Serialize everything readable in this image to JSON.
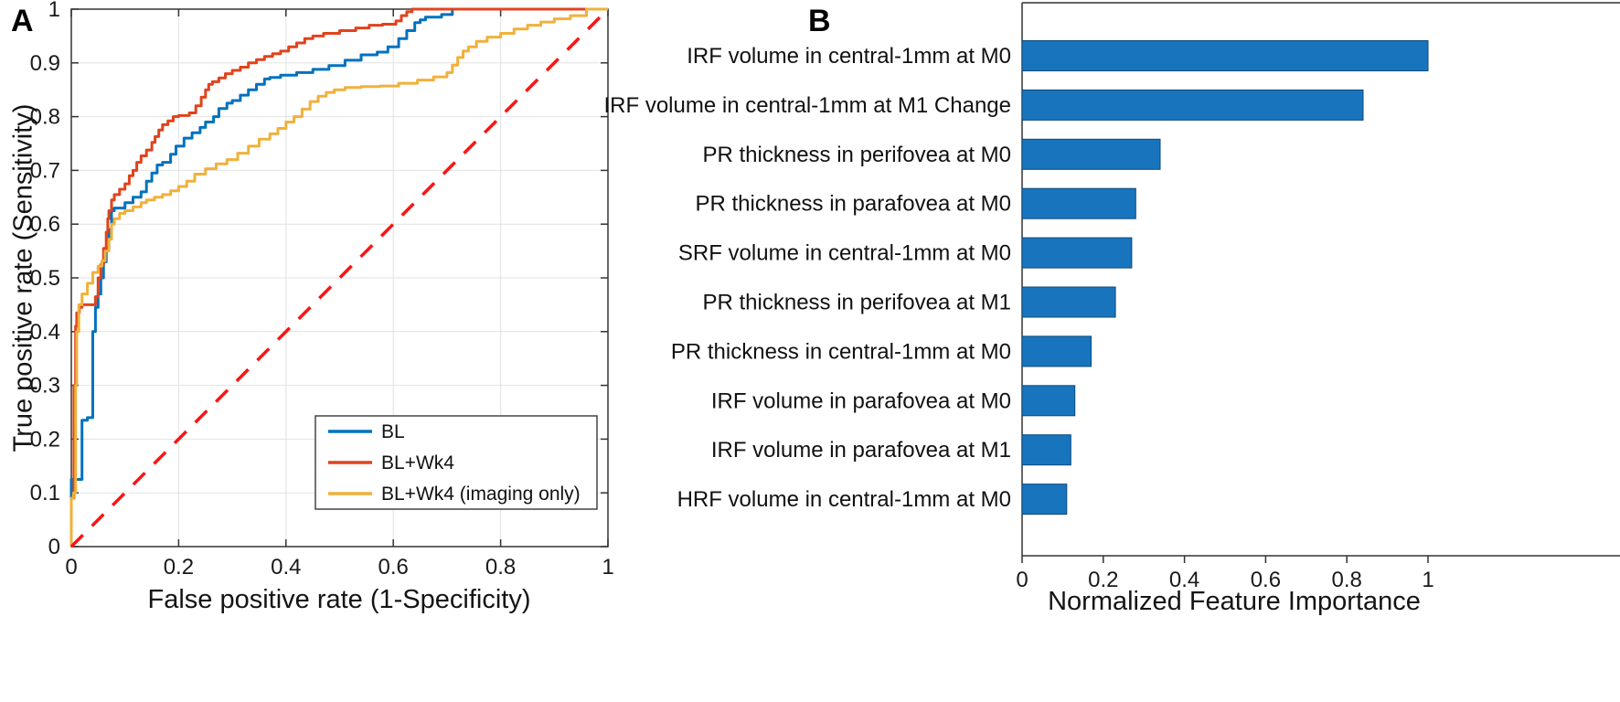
{
  "figure": {
    "background": "#ffffff",
    "panels": [
      {
        "label": "A"
      },
      {
        "label": "B"
      }
    ]
  },
  "chart_data": [
    {
      "type": "line",
      "panel": "A",
      "title": "",
      "xlabel": "False positive rate (1-Specificity)",
      "ylabel": "True positive rate (Sensitivity)",
      "xlim": [
        0,
        1
      ],
      "ylim": [
        0,
        1
      ],
      "x_ticks": [
        0,
        0.2,
        0.4,
        0.6,
        0.8,
        1
      ],
      "x_tick_labels": [
        "0",
        "0.2",
        "0.4",
        "0.6",
        "0.8",
        "1"
      ],
      "y_ticks": [
        0,
        0.1,
        0.2,
        0.3,
        0.4,
        0.5,
        0.6,
        0.7,
        0.8,
        0.9,
        1
      ],
      "y_tick_labels": [
        "0",
        "0.1",
        "0.2",
        "0.3",
        "0.4",
        "0.5",
        "0.6",
        "0.7",
        "0.8",
        "0.9",
        "1"
      ],
      "grid": true,
      "grid_color": "#e2e2e2",
      "axis_color": "#333333",
      "legend": {
        "position": "lower-right",
        "entries": [
          "BL",
          "BL+Wk4",
          "BL+Wk4 (imaging only)"
        ]
      },
      "series": [
        {
          "name": "BL",
          "color": "#0072bd",
          "width": 3,
          "step": true,
          "in_legend": true,
          "points": [
            [
              0,
              0
            ],
            [
              0.02,
              0.125
            ],
            [
              0.03,
              0.235
            ],
            [
              0.04,
              0.24
            ],
            [
              0.04,
              0.33
            ],
            [
              0.045,
              0.4
            ],
            [
              0.05,
              0.445
            ],
            [
              0.055,
              0.47
            ],
            [
              0.06,
              0.5
            ],
            [
              0.065,
              0.53
            ],
            [
              0.07,
              0.555
            ],
            [
              0.075,
              0.59
            ],
            [
              0.08,
              0.625
            ],
            [
              0.1,
              0.63
            ],
            [
              0.115,
              0.64
            ],
            [
              0.13,
              0.65
            ],
            [
              0.14,
              0.66
            ],
            [
              0.15,
              0.68
            ],
            [
              0.16,
              0.695
            ],
            [
              0.17,
              0.71
            ],
            [
              0.185,
              0.715
            ],
            [
              0.195,
              0.73
            ],
            [
              0.21,
              0.745
            ],
            [
              0.225,
              0.76
            ],
            [
              0.24,
              0.77
            ],
            [
              0.25,
              0.78
            ],
            [
              0.265,
              0.79
            ],
            [
              0.275,
              0.8
            ],
            [
              0.29,
              0.815
            ],
            [
              0.3,
              0.825
            ],
            [
              0.315,
              0.83
            ],
            [
              0.33,
              0.84
            ],
            [
              0.345,
              0.85
            ],
            [
              0.36,
              0.86
            ],
            [
              0.37,
              0.87
            ],
            [
              0.39,
              0.873
            ],
            [
              0.42,
              0.877
            ],
            [
              0.45,
              0.882
            ],
            [
              0.48,
              0.888
            ],
            [
              0.51,
              0.895
            ],
            [
              0.54,
              0.905
            ],
            [
              0.57,
              0.915
            ],
            [
              0.59,
              0.92
            ],
            [
              0.61,
              0.93
            ],
            [
              0.625,
              0.945
            ],
            [
              0.64,
              0.96
            ],
            [
              0.65,
              0.975
            ],
            [
              0.66,
              0.98
            ],
            [
              0.69,
              0.985
            ],
            [
              0.71,
              0.99
            ],
            [
              0.72,
              1
            ],
            [
              1,
              1
            ]
          ]
        },
        {
          "name": "BL+Wk4",
          "color": "#e0431c",
          "width": 3,
          "step": true,
          "in_legend": true,
          "points": [
            [
              0,
              0
            ],
            [
              0.005,
              0.09
            ],
            [
              0.008,
              0.3
            ],
            [
              0.01,
              0.41
            ],
            [
              0.015,
              0.435
            ],
            [
              0.02,
              0.445
            ],
            [
              0.045,
              0.45
            ],
            [
              0.05,
              0.465
            ],
            [
              0.055,
              0.5
            ],
            [
              0.06,
              0.525
            ],
            [
              0.065,
              0.555
            ],
            [
              0.068,
              0.585
            ],
            [
              0.07,
              0.61
            ],
            [
              0.075,
              0.625
            ],
            [
              0.08,
              0.645
            ],
            [
              0.09,
              0.655
            ],
            [
              0.1,
              0.665
            ],
            [
              0.108,
              0.675
            ],
            [
              0.115,
              0.69
            ],
            [
              0.122,
              0.7
            ],
            [
              0.13,
              0.715
            ],
            [
              0.14,
              0.727
            ],
            [
              0.15,
              0.738
            ],
            [
              0.156,
              0.752
            ],
            [
              0.163,
              0.763
            ],
            [
              0.17,
              0.775
            ],
            [
              0.18,
              0.785
            ],
            [
              0.19,
              0.792
            ],
            [
              0.2,
              0.8
            ],
            [
              0.22,
              0.802
            ],
            [
              0.232,
              0.807
            ],
            [
              0.242,
              0.82
            ],
            [
              0.25,
              0.836
            ],
            [
              0.256,
              0.85
            ],
            [
              0.263,
              0.86
            ],
            [
              0.275,
              0.865
            ],
            [
              0.287,
              0.872
            ],
            [
              0.3,
              0.88
            ],
            [
              0.315,
              0.886
            ],
            [
              0.33,
              0.892
            ],
            [
              0.345,
              0.9
            ],
            [
              0.36,
              0.906
            ],
            [
              0.375,
              0.912
            ],
            [
              0.39,
              0.917
            ],
            [
              0.405,
              0.922
            ],
            [
              0.42,
              0.93
            ],
            [
              0.435,
              0.937
            ],
            [
              0.45,
              0.945
            ],
            [
              0.47,
              0.95
            ],
            [
              0.5,
              0.955
            ],
            [
              0.53,
              0.96
            ],
            [
              0.555,
              0.965
            ],
            [
              0.58,
              0.97
            ],
            [
              0.605,
              0.972
            ],
            [
              0.615,
              0.978
            ],
            [
              0.625,
              0.988
            ],
            [
              0.635,
              0.995
            ],
            [
              0.645,
              1
            ],
            [
              1,
              1
            ]
          ]
        },
        {
          "name": "BL+Wk4 (imaging only)",
          "color": "#f0b13b",
          "width": 3,
          "step": true,
          "in_legend": true,
          "points": [
            [
              0,
              0
            ],
            [
              0.004,
              0.09
            ],
            [
              0.008,
              0.1
            ],
            [
              0.01,
              0.3
            ],
            [
              0.014,
              0.4
            ],
            [
              0.02,
              0.45
            ],
            [
              0.03,
              0.47
            ],
            [
              0.04,
              0.49
            ],
            [
              0.05,
              0.51
            ],
            [
              0.057,
              0.522
            ],
            [
              0.063,
              0.532
            ],
            [
              0.07,
              0.55
            ],
            [
              0.075,
              0.572
            ],
            [
              0.08,
              0.6
            ],
            [
              0.09,
              0.61
            ],
            [
              0.1,
              0.62
            ],
            [
              0.115,
              0.625
            ],
            [
              0.13,
              0.632
            ],
            [
              0.14,
              0.64
            ],
            [
              0.155,
              0.645
            ],
            [
              0.17,
              0.65
            ],
            [
              0.185,
              0.655
            ],
            [
              0.2,
              0.662
            ],
            [
              0.215,
              0.67
            ],
            [
              0.23,
              0.68
            ],
            [
              0.25,
              0.693
            ],
            [
              0.27,
              0.703
            ],
            [
              0.29,
              0.712
            ],
            [
              0.31,
              0.72
            ],
            [
              0.33,
              0.732
            ],
            [
              0.35,
              0.745
            ],
            [
              0.37,
              0.758
            ],
            [
              0.385,
              0.768
            ],
            [
              0.4,
              0.778
            ],
            [
              0.415,
              0.79
            ],
            [
              0.43,
              0.8
            ],
            [
              0.445,
              0.814
            ],
            [
              0.46,
              0.828
            ],
            [
              0.475,
              0.838
            ],
            [
              0.49,
              0.845
            ],
            [
              0.51,
              0.85
            ],
            [
              0.54,
              0.854
            ],
            [
              0.575,
              0.856
            ],
            [
              0.61,
              0.857
            ],
            [
              0.645,
              0.862
            ],
            [
              0.675,
              0.868
            ],
            [
              0.7,
              0.874
            ],
            [
              0.71,
              0.882
            ],
            [
              0.72,
              0.896
            ],
            [
              0.73,
              0.91
            ],
            [
              0.74,
              0.922
            ],
            [
              0.755,
              0.93
            ],
            [
              0.775,
              0.94
            ],
            [
              0.8,
              0.948
            ],
            [
              0.825,
              0.955
            ],
            [
              0.85,
              0.963
            ],
            [
              0.875,
              0.97
            ],
            [
              0.9,
              0.976
            ],
            [
              0.93,
              0.982
            ],
            [
              0.96,
              0.988
            ],
            [
              1,
              1
            ]
          ]
        },
        {
          "name": "Chance diagonal",
          "color": "#fb1414",
          "width": 3.5,
          "step": false,
          "dash": true,
          "in_legend": false,
          "points": [
            [
              0,
              0
            ],
            [
              1,
              1
            ]
          ]
        }
      ]
    },
    {
      "type": "bar",
      "panel": "B",
      "orientation": "horizontal",
      "title": "",
      "xlabel": "Normalized Feature Importance",
      "xlim": [
        0,
        1.47
      ],
      "x_ticks": [
        0,
        0.2,
        0.4,
        0.6,
        0.8,
        1
      ],
      "x_tick_labels": [
        "0",
        "0.2",
        "0.4",
        "0.6",
        "0.8",
        "1"
      ],
      "grid": false,
      "axis_color": "#333333",
      "bar_color": "#1874bd",
      "bar_edge_color": "#0d4a7d",
      "categories": [
        "IRF volume in central-1mm at M0",
        "IRF volume in central-1mm at M1 Change",
        "PR thickness in perifovea at M0",
        "PR thickness in parafovea at M0",
        "SRF volume in central-1mm at M0",
        "PR thickness in perifovea at M1",
        "PR thickness in central-1mm at M0",
        "IRF volume in parafovea at M0",
        "IRF volume in parafovea at M1",
        "HRF volume in central-1mm at M0"
      ],
      "values": [
        1.0,
        0.84,
        0.34,
        0.28,
        0.27,
        0.23,
        0.17,
        0.13,
        0.12,
        0.11
      ]
    }
  ]
}
